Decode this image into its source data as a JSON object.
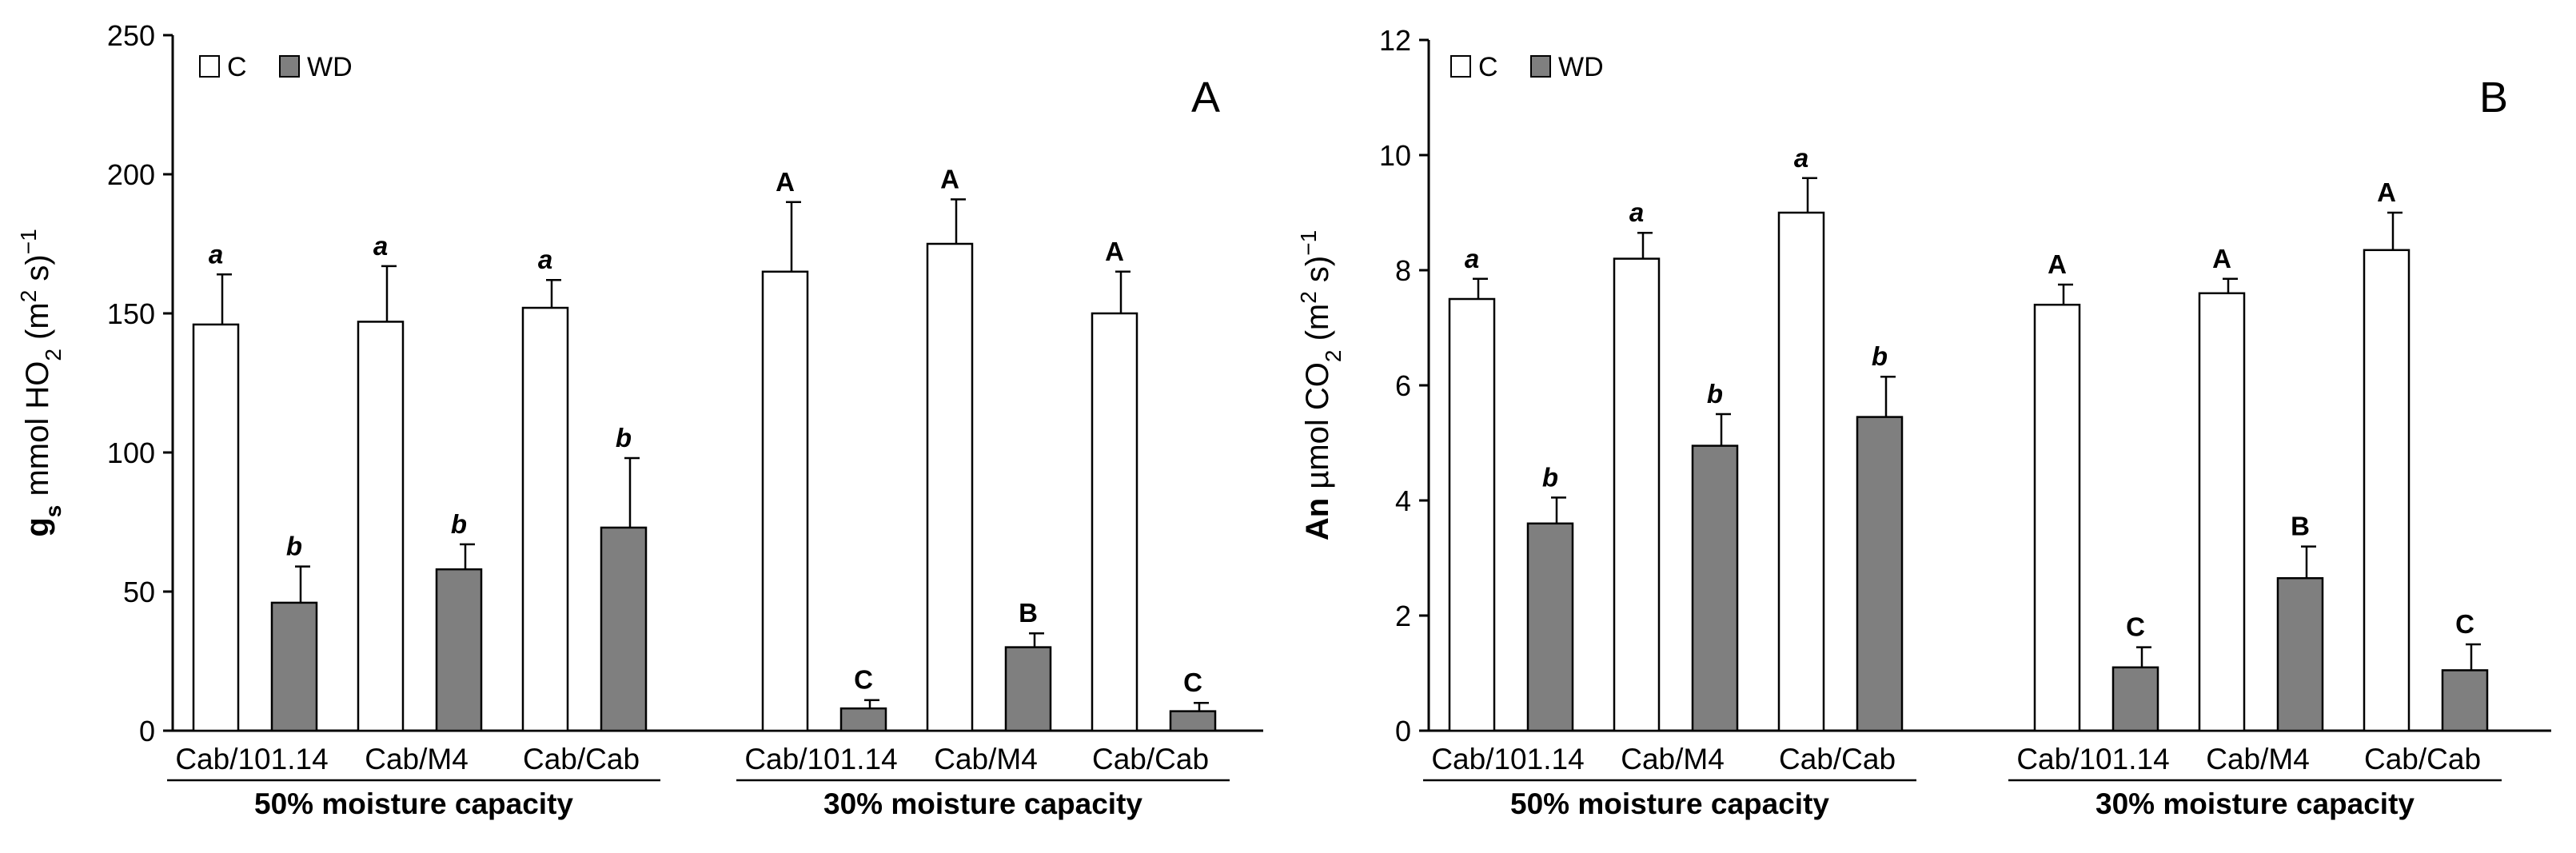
{
  "chart_data": [
    {
      "type": "bar",
      "panel_label": "A",
      "ylabel": {
        "main": "g",
        "sub": "s",
        "rest": " mmol HO",
        "sub2": "2",
        "rest2": " (m",
        "sup": "2",
        "rest3": " s)",
        "sup2": "−1"
      },
      "ylim": [
        0,
        250
      ],
      "yticks": [
        0,
        50,
        100,
        150,
        200,
        250
      ],
      "legend": [
        "C",
        "WD"
      ],
      "groups": [
        {
          "label": "50% moisture capacity",
          "categories": [
            "Cab/101.14",
            "Cab/M4",
            "Cab/Cab"
          ],
          "C": [
            146,
            147,
            152
          ],
          "C_err": [
            18,
            20,
            10
          ],
          "WD": [
            46,
            58,
            73
          ],
          "WD_err": [
            13,
            9,
            25
          ],
          "C_sig": [
            "a",
            "a",
            "a"
          ],
          "WD_sig": [
            "b",
            "b",
            "b"
          ],
          "sig_italic": true
        },
        {
          "label": "30% moisture capacity",
          "categories": [
            "Cab/101.14",
            "Cab/M4",
            "Cab/Cab"
          ],
          "C": [
            165,
            175,
            150
          ],
          "C_err": [
            25,
            16,
            15
          ],
          "WD": [
            8,
            30,
            7
          ],
          "WD_err": [
            3,
            5,
            3
          ],
          "C_sig": [
            "A",
            "A",
            "A"
          ],
          "WD_sig": [
            "C",
            "B",
            "C"
          ],
          "sig_italic": false
        }
      ]
    },
    {
      "type": "bar",
      "panel_label": "B",
      "ylabel": {
        "main": "An",
        "sub": "",
        "rest": " µmol CO",
        "sub2": "2",
        "rest2": " (m",
        "sup": "2",
        "rest3": " s)",
        "sup2": "−1"
      },
      "ylim": [
        0,
        12
      ],
      "yticks": [
        0,
        2,
        4,
        6,
        8,
        10,
        12
      ],
      "legend": [
        "C",
        "WD"
      ],
      "groups": [
        {
          "label": "50% moisture capacity",
          "categories": [
            "Cab/101.14",
            "Cab/M4",
            "Cab/Cab"
          ],
          "C": [
            7.5,
            8.2,
            9.0
          ],
          "C_err": [
            0.35,
            0.45,
            0.6
          ],
          "WD": [
            3.6,
            4.95,
            5.45
          ],
          "WD_err": [
            0.45,
            0.55,
            0.7
          ],
          "C_sig": [
            "a",
            "a",
            "a"
          ],
          "WD_sig": [
            "b",
            "b",
            "b"
          ],
          "sig_italic": true
        },
        {
          "label": "30% moisture capacity",
          "categories": [
            "Cab/101.14",
            "Cab/M4",
            "Cab/Cab"
          ],
          "C": [
            7.4,
            7.6,
            8.35
          ],
          "C_err": [
            0.35,
            0.25,
            0.65
          ],
          "WD": [
            1.1,
            2.65,
            1.05
          ],
          "WD_err": [
            0.35,
            0.55,
            0.45
          ],
          "C_sig": [
            "A",
            "A",
            "A"
          ],
          "WD_sig": [
            "C",
            "B",
            "C"
          ],
          "sig_italic": false
        }
      ]
    }
  ],
  "colors": {
    "C": "#ffffff",
    "WD": "#7f7f7f",
    "stroke": "#000000"
  }
}
